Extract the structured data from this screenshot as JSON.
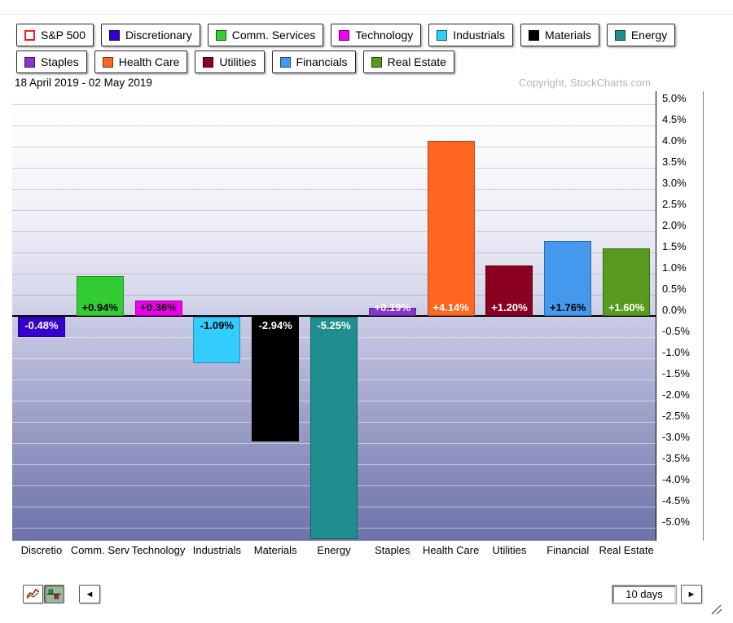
{
  "legend": {
    "rows": [
      [
        {
          "label": "S&P 500",
          "color": "#ffffff",
          "chip_border": "#ee2222"
        },
        {
          "label": "Discretionary",
          "color": "#3300cc"
        },
        {
          "label": "Comm. Services",
          "color": "#33cc33"
        },
        {
          "label": "Technology",
          "color": "#ee00ee"
        },
        {
          "label": "Industrials",
          "color": "#33ccff"
        },
        {
          "label": "Materials",
          "color": "#000000"
        },
        {
          "label": "Energy",
          "color": "#1f8e8e"
        }
      ],
      [
        {
          "label": "Staples",
          "color": "#8833cc"
        },
        {
          "label": "Health Care",
          "color": "#ff6622"
        },
        {
          "label": "Utilities",
          "color": "#8b0020"
        },
        {
          "label": "Financials",
          "color": "#4499ee"
        },
        {
          "label": "Real Estate",
          "color": "#579a1e"
        }
      ]
    ]
  },
  "chart": {
    "date_range": "18 April 2019 - 02 May 2019",
    "copyright": "Copyright, StockCharts.com"
  },
  "chart_data": {
    "type": "bar",
    "title": "",
    "xlabel": "",
    "ylabel": "",
    "categories": [
      "Discretionary",
      "Comm. Services",
      "Technology",
      "Industrials",
      "Materials",
      "Energy",
      "Staples",
      "Health Care",
      "Utilities",
      "Financials",
      "Real Estate"
    ],
    "x_tick_labels": [
      "Discretio",
      "Comm. Serv",
      "Technology",
      "Industrials",
      "Materials",
      "Energy",
      "Staples",
      "Health Care",
      "Utilities",
      "Financial",
      "Real Estate"
    ],
    "values": [
      -0.48,
      0.94,
      0.36,
      -1.09,
      -2.94,
      -5.25,
      0.19,
      4.14,
      1.2,
      1.76,
      1.6
    ],
    "value_labels": [
      "-0.48%",
      "+0.94%",
      "+0.36%",
      "-1.09%",
      "-2.94%",
      "-5.25%",
      "+0.19%",
      "+4.14%",
      "+1.20%",
      "+1.76%",
      "+1.60%"
    ],
    "bar_colors": [
      "#3300cc",
      "#33cc33",
      "#ee00ee",
      "#33ccff",
      "#000000",
      "#1f8e8e",
      "#8833cc",
      "#ff6622",
      "#8b0020",
      "#4499ee",
      "#579a1e"
    ],
    "label_text_colors": [
      "#ffffff",
      "#000000",
      "#000000",
      "#000000",
      "#ffffff",
      "#ffffff",
      "#ffffff",
      "#ffffff",
      "#ffffff",
      "#000000",
      "#ffffff"
    ],
    "y_ticks": [
      "5.0%",
      "4.5%",
      "4.0%",
      "3.5%",
      "3.0%",
      "2.5%",
      "2.0%",
      "1.5%",
      "1.0%",
      "0.5%",
      "0.0%",
      "-0.5%",
      "-1.0%",
      "-1.5%",
      "-2.0%",
      "-2.5%",
      "-3.0%",
      "-3.5%",
      "-4.0%",
      "-4.5%",
      "-5.0%"
    ],
    "ylim": [
      -5.3,
      5.3
    ],
    "grid": true,
    "legend_position": "top"
  },
  "toolbar": {
    "prev_label": "◄",
    "next_label": "►",
    "period_value": "10 days"
  }
}
